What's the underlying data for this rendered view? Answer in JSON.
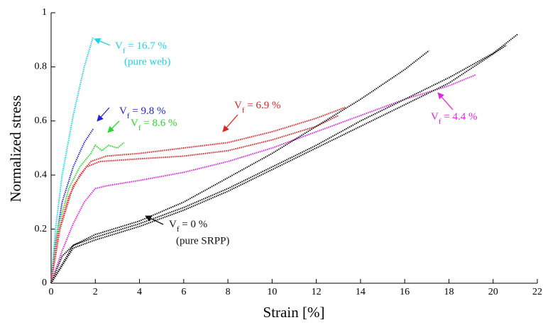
{
  "chart_data": {
    "type": "line",
    "xlabel": "Strain [%]",
    "ylabel": "Normalized stress",
    "xlim": [
      0,
      22
    ],
    "ylim": [
      0,
      1
    ],
    "xticks": [
      0,
      2,
      4,
      6,
      8,
      10,
      12,
      14,
      16,
      18,
      20,
      22
    ],
    "yticks": [
      0,
      0.2,
      0.4,
      0.6,
      0.8,
      1
    ],
    "series": [
      {
        "color": "#1fd3e6",
        "x": [
          0,
          0.2,
          0.5,
          1,
          1.5,
          1.9
        ],
        "values": [
          0,
          0.2,
          0.4,
          0.62,
          0.8,
          0.91
        ]
      },
      {
        "color": "#2222d6",
        "x": [
          0,
          0.2,
          0.5,
          1,
          1.5,
          1.9
        ],
        "values": [
          0,
          0.15,
          0.3,
          0.43,
          0.52,
          0.57
        ]
      },
      {
        "color": "#2cd62c",
        "x": [
          0,
          0.3,
          0.8,
          1.3,
          1.8,
          2.0,
          2.3,
          2.6,
          3.0,
          3.3
        ],
        "values": [
          0,
          0.2,
          0.35,
          0.43,
          0.48,
          0.51,
          0.49,
          0.51,
          0.5,
          0.52
        ]
      },
      {
        "color": "#e02424",
        "x": [
          0,
          0.3,
          0.8,
          1.3,
          1.8,
          2.5,
          4,
          6,
          8,
          10,
          12,
          13.3
        ],
        "values": [
          0,
          0.18,
          0.32,
          0.4,
          0.45,
          0.47,
          0.48,
          0.5,
          0.52,
          0.56,
          0.61,
          0.65
        ]
      },
      {
        "color": "#e02424",
        "x": [
          0,
          0.4,
          1,
          1.6,
          2.2,
          4,
          6,
          8,
          10,
          12,
          13
        ],
        "values": [
          0,
          0.2,
          0.36,
          0.43,
          0.45,
          0.46,
          0.47,
          0.49,
          0.53,
          0.58,
          0.62
        ]
      },
      {
        "color": "#e224e2",
        "x": [
          0,
          0.5,
          1,
          1.5,
          2,
          2.5,
          4,
          6,
          8,
          10,
          12,
          14,
          16,
          18,
          19.2
        ],
        "values": [
          0,
          0.12,
          0.22,
          0.3,
          0.35,
          0.36,
          0.38,
          0.41,
          0.45,
          0.5,
          0.56,
          0.62,
          0.68,
          0.73,
          0.77
        ]
      },
      {
        "color": "#111111",
        "x": [
          0,
          0.5,
          1,
          2,
          4,
          6,
          8,
          10,
          12,
          14,
          16,
          17.1
        ],
        "values": [
          0,
          0.1,
          0.14,
          0.18,
          0.23,
          0.3,
          0.39,
          0.48,
          0.58,
          0.68,
          0.79,
          0.86
        ]
      },
      {
        "color": "#111111",
        "x": [
          0,
          1,
          2,
          4,
          6,
          8,
          10,
          12,
          14,
          16,
          18,
          20,
          21.1
        ],
        "values": [
          0,
          0.14,
          0.17,
          0.22,
          0.28,
          0.35,
          0.43,
          0.51,
          0.6,
          0.68,
          0.76,
          0.85,
          0.92
        ]
      },
      {
        "color": "#111111",
        "x": [
          0,
          1,
          2,
          4,
          6,
          8,
          10,
          12,
          14,
          16,
          18,
          20.6
        ],
        "values": [
          0,
          0.13,
          0.16,
          0.21,
          0.27,
          0.34,
          0.42,
          0.5,
          0.58,
          0.66,
          0.74,
          0.88
        ]
      }
    ],
    "annotations": [
      {
        "color": "#1fd3e6",
        "parts": [
          "V",
          "f",
          " = 16.7 %"
        ],
        "note": "(pure web)"
      },
      {
        "color": "#2222d6",
        "parts": [
          "V",
          "f",
          " = 9.8 %"
        ]
      },
      {
        "color": "#2cd62c",
        "parts": [
          "V",
          "f",
          " = 8.6 %"
        ]
      },
      {
        "color": "#e02424",
        "parts": [
          "V",
          "f",
          " = 6.9 %"
        ]
      },
      {
        "color": "#e224e2",
        "parts": [
          "V",
          "f",
          " = 4.4 %"
        ]
      },
      {
        "color": "#111111",
        "parts": [
          "V",
          "f",
          " = 0 %"
        ],
        "note": "(pure SRPP)"
      }
    ]
  }
}
